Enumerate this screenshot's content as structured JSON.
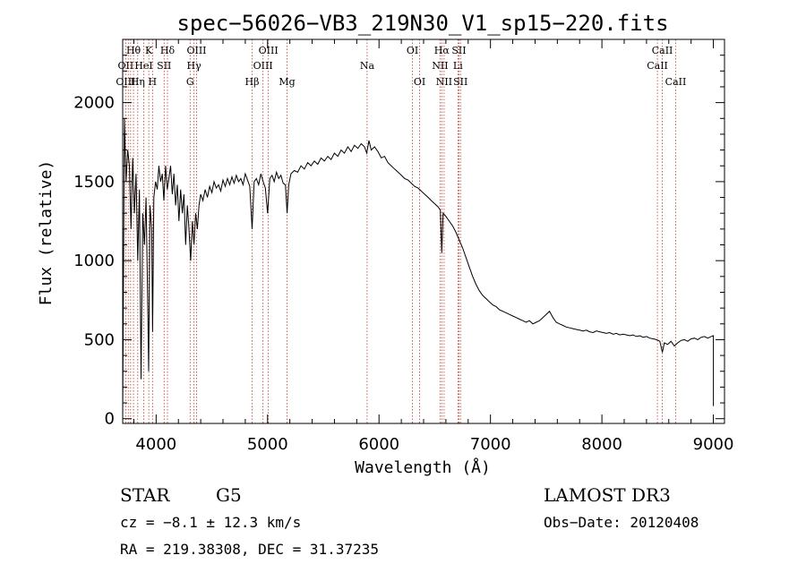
{
  "chart_data": {
    "type": "line",
    "title": "spec−56026−VB3_219N30_V1_sp15−220.fits",
    "xlabel": "Wavelength (Å)",
    "ylabel": "Flux (relative)",
    "xlim": [
      3700,
      9100
    ],
    "ylim": [
      -30,
      2400
    ],
    "xticks": [
      4000,
      5000,
      6000,
      7000,
      8000,
      9000
    ],
    "xtick_labels": [
      "4000",
      "5000",
      "6000",
      "7000",
      "8000",
      "9000"
    ],
    "yticks": [
      0,
      500,
      1000,
      1500,
      2000
    ],
    "ytick_labels": [
      "0",
      "500",
      "1000",
      "1500",
      "2000"
    ],
    "series": [
      {
        "name": "spectrum",
        "x": [
          3700,
          3715,
          3730,
          3745,
          3760,
          3775,
          3790,
          3805,
          3820,
          3835,
          3850,
          3865,
          3880,
          3895,
          3910,
          3925,
          3933,
          3945,
          3960,
          3968,
          3980,
          3995,
          4010,
          4025,
          4040,
          4055,
          4070,
          4085,
          4100,
          4115,
          4130,
          4145,
          4160,
          4175,
          4190,
          4205,
          4220,
          4235,
          4250,
          4265,
          4280,
          4295,
          4310,
          4325,
          4340,
          4355,
          4370,
          4385,
          4400,
          4420,
          4440,
          4460,
          4480,
          4500,
          4520,
          4540,
          4560,
          4580,
          4600,
          4620,
          4640,
          4660,
          4680,
          4700,
          4720,
          4740,
          4760,
          4780,
          4800,
          4820,
          4840,
          4861,
          4880,
          4900,
          4920,
          4940,
          4960,
          4980,
          5000,
          5020,
          5040,
          5060,
          5080,
          5100,
          5120,
          5140,
          5160,
          5175,
          5190,
          5210,
          5240,
          5270,
          5300,
          5330,
          5360,
          5390,
          5420,
          5450,
          5480,
          5510,
          5540,
          5570,
          5600,
          5630,
          5660,
          5690,
          5720,
          5750,
          5780,
          5810,
          5840,
          5870,
          5890,
          5910,
          5930,
          5960,
          5990,
          6020,
          6050,
          6080,
          6110,
          6140,
          6170,
          6200,
          6230,
          6260,
          6290,
          6320,
          6350,
          6380,
          6410,
          6440,
          6470,
          6500,
          6530,
          6550,
          6563,
          6575,
          6600,
          6630,
          6660,
          6690,
          6720,
          6750,
          6780,
          6810,
          6840,
          6870,
          6900,
          6930,
          6960,
          6990,
          7020,
          7050,
          7080,
          7110,
          7140,
          7170,
          7200,
          7230,
          7260,
          7290,
          7320,
          7350,
          7380,
          7410,
          7440,
          7470,
          7500,
          7530,
          7560,
          7590,
          7620,
          7650,
          7680,
          7710,
          7740,
          7770,
          7800,
          7830,
          7860,
          7890,
          7920,
          7950,
          7980,
          8010,
          8040,
          8070,
          8100,
          8130,
          8160,
          8190,
          8220,
          8250,
          8280,
          8310,
          8340,
          8370,
          8400,
          8430,
          8460,
          8490,
          8520,
          8542,
          8560,
          8590,
          8620,
          8650,
          8680,
          8710,
          8740,
          8770,
          8800,
          8830,
          8860,
          8890,
          8920,
          8950,
          8980,
          9000,
          9000
        ],
        "y": [
          0,
          1900,
          1500,
          1700,
          1600,
          1200,
          1650,
          1300,
          1550,
          1000,
          1450,
          250,
          1300,
          1100,
          1400,
          700,
          300,
          1350,
          1200,
          550,
          1400,
          1500,
          1450,
          1600,
          1500,
          1550,
          1380,
          1600,
          1450,
          1520,
          1600,
          1420,
          1550,
          1350,
          1480,
          1250,
          1450,
          1300,
          1420,
          1100,
          1350,
          1200,
          1000,
          1250,
          1100,
          1300,
          1200,
          1350,
          1420,
          1380,
          1450,
          1400,
          1470,
          1430,
          1500,
          1460,
          1480,
          1440,
          1510,
          1470,
          1520,
          1480,
          1530,
          1490,
          1540,
          1500,
          1520,
          1480,
          1550,
          1510,
          1470,
          1200,
          1500,
          1520,
          1480,
          1550,
          1500,
          1460,
          1300,
          1520,
          1540,
          1500,
          1560,
          1520,
          1540,
          1490,
          1480,
          1300,
          1480,
          1550,
          1570,
          1560,
          1600,
          1580,
          1620,
          1600,
          1630,
          1610,
          1650,
          1630,
          1660,
          1640,
          1680,
          1660,
          1700,
          1680,
          1720,
          1690,
          1730,
          1710,
          1740,
          1720,
          1680,
          1760,
          1700,
          1720,
          1690,
          1650,
          1660,
          1620,
          1600,
          1580,
          1560,
          1540,
          1520,
          1510,
          1490,
          1470,
          1460,
          1440,
          1420,
          1400,
          1380,
          1360,
          1340,
          1320,
          1050,
          1300,
          1280,
          1250,
          1220,
          1180,
          1130,
          1080,
          1020,
          960,
          900,
          850,
          810,
          780,
          760,
          740,
          720,
          710,
          690,
          680,
          670,
          660,
          650,
          640,
          630,
          620,
          610,
          620,
          600,
          610,
          620,
          640,
          660,
          680,
          640,
          610,
          600,
          590,
          580,
          575,
          570,
          565,
          560,
          555,
          560,
          550,
          545,
          555,
          550,
          545,
          540,
          545,
          535,
          540,
          530,
          535,
          530,
          525,
          530,
          520,
          525,
          515,
          520,
          510,
          505,
          500,
          490,
          420,
          480,
          470,
          490,
          460,
          480,
          495,
          500,
          490,
          505,
          510,
          500,
          515,
          520,
          510,
          520,
          525,
          80
        ]
      }
    ],
    "spectral_lines": [
      {
        "label": "Hθ",
        "x": 3797,
        "row": 0
      },
      {
        "label": "K",
        "x": 3934,
        "row": 0
      },
      {
        "label": "Hδ",
        "x": 4102,
        "row": 0
      },
      {
        "label": "OIII",
        "x": 4363,
        "row": 0
      },
      {
        "label": "OIII",
        "x": 5007,
        "row": 0
      },
      {
        "label": "OI",
        "x": 6300,
        "row": 0
      },
      {
        "label": "Hα",
        "x": 6563,
        "row": 0
      },
      {
        "label": "SII",
        "x": 6717,
        "row": 0
      },
      {
        "label": "CaII",
        "x": 8542,
        "row": 0
      },
      {
        "label": "OII",
        "x": 3727,
        "row": 1
      },
      {
        "label": "HeI",
        "x": 3889,
        "row": 1
      },
      {
        "label": "SII",
        "x": 4072,
        "row": 1
      },
      {
        "label": "Hγ",
        "x": 4340,
        "row": 1
      },
      {
        "label": "OIII",
        "x": 4959,
        "row": 1
      },
      {
        "label": "NII",
        "x": 6548,
        "row": 1
      },
      {
        "label": "Li",
        "x": 6708,
        "row": 1
      },
      {
        "label": "CaII",
        "x": 8498,
        "row": 1
      },
      {
        "label": "OIII",
        "x": 3727,
        "row": 2
      },
      {
        "label": "Hη",
        "x": 3835,
        "row": 2
      },
      {
        "label": "H",
        "x": 3968,
        "row": 2
      },
      {
        "label": "G",
        "x": 4305,
        "row": 2
      },
      {
        "label": "Hβ",
        "x": 4861,
        "row": 2
      },
      {
        "label": "Mg",
        "x": 5175,
        "row": 2
      },
      {
        "label": "Na",
        "x": 5893,
        "row": 1
      },
      {
        "label": "OI",
        "x": 6364,
        "row": 2
      },
      {
        "label": "NII",
        "x": 6584,
        "row": 2
      },
      {
        "label": "SII",
        "x": 6731,
        "row": 2
      },
      {
        "label": "CaII",
        "x": 8662,
        "row": 2
      }
    ],
    "line_markers_x": [
      3727,
      3750,
      3771,
      3797,
      3835,
      3889,
      3934,
      3968,
      4072,
      4102,
      4305,
      4340,
      4363,
      4861,
      4959,
      5007,
      5175,
      5893,
      6300,
      6364,
      6548,
      6563,
      6584,
      6708,
      6717,
      6731,
      8498,
      8542,
      8662
    ],
    "annotations": {
      "object_class": "STAR",
      "subclass": "G5",
      "survey": "LAMOST DR3",
      "cz": "cz = −8.1 ± 12.3 km/s",
      "obs_date": "Obs−Date: 20120408",
      "coords": "RA = 219.38308, DEC =  31.37235"
    },
    "colors": {
      "spectrum": "#000000",
      "line_markers": "#c0392b",
      "axes": "#000000",
      "background": "#ffffff"
    }
  }
}
